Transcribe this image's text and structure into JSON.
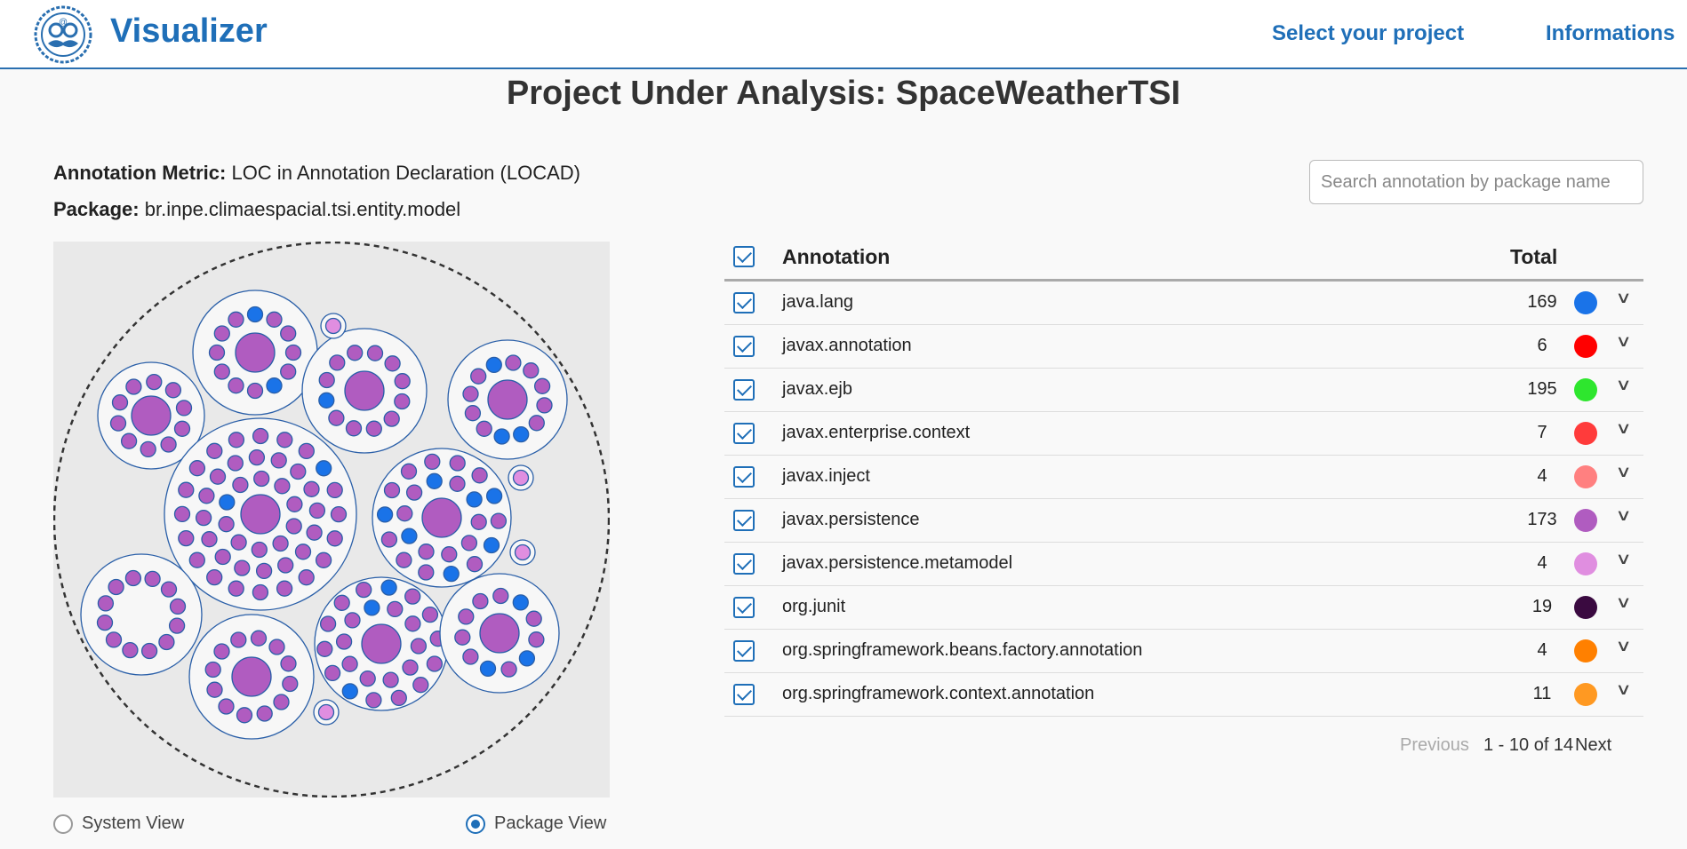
{
  "header": {
    "brand": "Visualizer",
    "logo_icon": "mustache-logo-icon",
    "nav": {
      "select_project": "Select your project",
      "informations": "Informations"
    }
  },
  "title": "Project Under Analysis: SpaceWeatherTSI",
  "meta": {
    "metric_label": "Annotation Metric:",
    "metric_value": "LOC in Annotation Declaration (LOCAD)",
    "package_label": "Package:",
    "package_value": "br.inpe.climaespacial.tsi.entity.model"
  },
  "views": {
    "system": "System View",
    "package": "Package View",
    "selected": "package"
  },
  "search": {
    "placeholder": "Search annotation by package name",
    "value": ""
  },
  "table": {
    "headers": {
      "annotation": "Annotation",
      "total": "Total"
    },
    "rows": [
      {
        "name": "java.lang",
        "total": "169",
        "color": "#1a73e8"
      },
      {
        "name": "javax.annotation",
        "total": "6",
        "color": "#ff0000"
      },
      {
        "name": "javax.ejb",
        "total": "195",
        "color": "#2ee62e"
      },
      {
        "name": "javax.enterprise.context",
        "total": "7",
        "color": "#ff3b3b"
      },
      {
        "name": "javax.inject",
        "total": "4",
        "color": "#ff8080"
      },
      {
        "name": "javax.persistence",
        "total": "173",
        "color": "#b05cc0"
      },
      {
        "name": "javax.persistence.metamodel",
        "total": "4",
        "color": "#e08ee0"
      },
      {
        "name": "org.junit",
        "total": "19",
        "color": "#3a0a40"
      },
      {
        "name": "org.springframework.beans.factory.annotation",
        "total": "4",
        "color": "#ff8000"
      },
      {
        "name": "org.springframework.context.annotation",
        "total": "11",
        "color": "#ff9922"
      }
    ]
  },
  "pager": {
    "previous": "Previous",
    "range": "1 - 10 of 14",
    "next": "Next"
  },
  "colors": {
    "accent": "#1f6fb8",
    "persistence": "#b05cc0",
    "lang": "#1a73e8"
  }
}
